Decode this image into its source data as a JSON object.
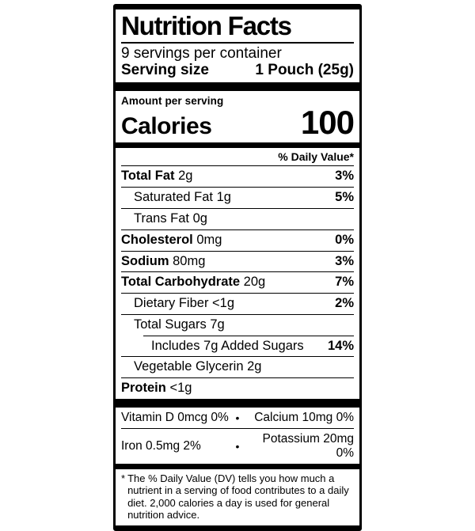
{
  "label": {
    "title": "Nutrition Facts",
    "servings_per_container": "9 servings per container",
    "serving_size_label": "Serving size",
    "serving_size_value": "1 Pouch (25g)",
    "amount_per_serving": "Amount per serving",
    "calories_label": "Calories",
    "calories_value": "100",
    "daily_value_header": "% Daily Value*",
    "rows": [
      {
        "name": "Total Fat",
        "amount": "2g",
        "dv": "3%"
      },
      {
        "name": "Saturated Fat",
        "amount": "1g",
        "dv": "5%"
      },
      {
        "name": "Trans Fat",
        "amount": "0g",
        "dv": ""
      },
      {
        "name": "Cholesterol",
        "amount": "0mg",
        "dv": "0%"
      },
      {
        "name": "Sodium",
        "amount": "80mg",
        "dv": "3%"
      },
      {
        "name": "Total Carbohydrate",
        "amount": "20g",
        "dv": "7%"
      },
      {
        "name": "Dietary Fiber",
        "amount": "<1g",
        "dv": "2%"
      },
      {
        "name": "Total Sugars",
        "amount": "7g",
        "dv": ""
      },
      {
        "name": "Includes 7g Added Sugars",
        "amount": "",
        "dv": "14%"
      },
      {
        "name": "Vegetable Glycerin",
        "amount": "2g",
        "dv": ""
      },
      {
        "name": "Protein",
        "amount": "<1g",
        "dv": ""
      }
    ],
    "bullet": "•",
    "micronutrients": [
      {
        "left": "Vitamin D 0mcg 0%",
        "right": "Calcium 10mg 0%"
      },
      {
        "left": "Iron 0.5mg 2%",
        "right": "Potassium 20mg 0%"
      }
    ],
    "footnote_marker": "*",
    "footnote": "The % Daily Value (DV) tells you how much a nutrient in a serving of food contributes to a daily diet. 2,000 calories a day is used for general nutrition advice.",
    "colors": {
      "ink": "#000000",
      "paper": "#ffffff"
    }
  }
}
